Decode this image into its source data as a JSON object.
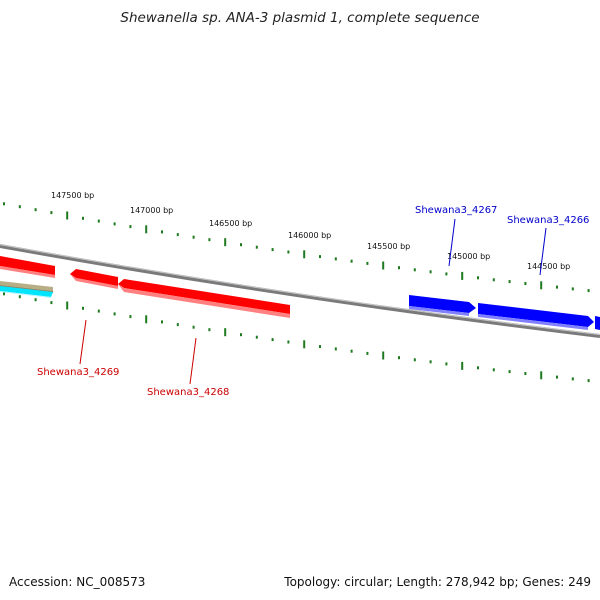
{
  "title": "Shewanella sp. ANA-3 plasmid 1, complete sequence",
  "footer": {
    "accession": "Accession: NC_008573",
    "summary": "Topology: circular; Length: 278,942 bp; Genes: 249"
  },
  "colors": {
    "backbone": "#7a7a7a",
    "tick": "#1f7a1f",
    "reverse_gene": "#ff0000",
    "forward_gene": "#0000ff",
    "reverse_label": "#cc0000",
    "forward_label": "#0000cc",
    "extra_track_1": "#b8ae86",
    "extra_track_2": "#00e5ff"
  },
  "scale_labels": [
    {
      "text": "147500 bp",
      "bp": 147500
    },
    {
      "text": "147000 bp",
      "bp": 147000
    },
    {
      "text": "146500 bp",
      "bp": 146500
    },
    {
      "text": "146000 bp",
      "bp": 146000
    },
    {
      "text": "145500 bp",
      "bp": 145500
    },
    {
      "text": "145000 bp",
      "bp": 145000
    },
    {
      "text": "144500 bp",
      "bp": 144500
    }
  ],
  "genes": [
    {
      "id": "Shewana3_4269",
      "strand": "reverse"
    },
    {
      "id": "Shewana3_4268",
      "strand": "reverse"
    },
    {
      "id": "Shewana3_4267",
      "strand": "forward"
    },
    {
      "id": "Shewana3_4266",
      "strand": "forward"
    }
  ]
}
